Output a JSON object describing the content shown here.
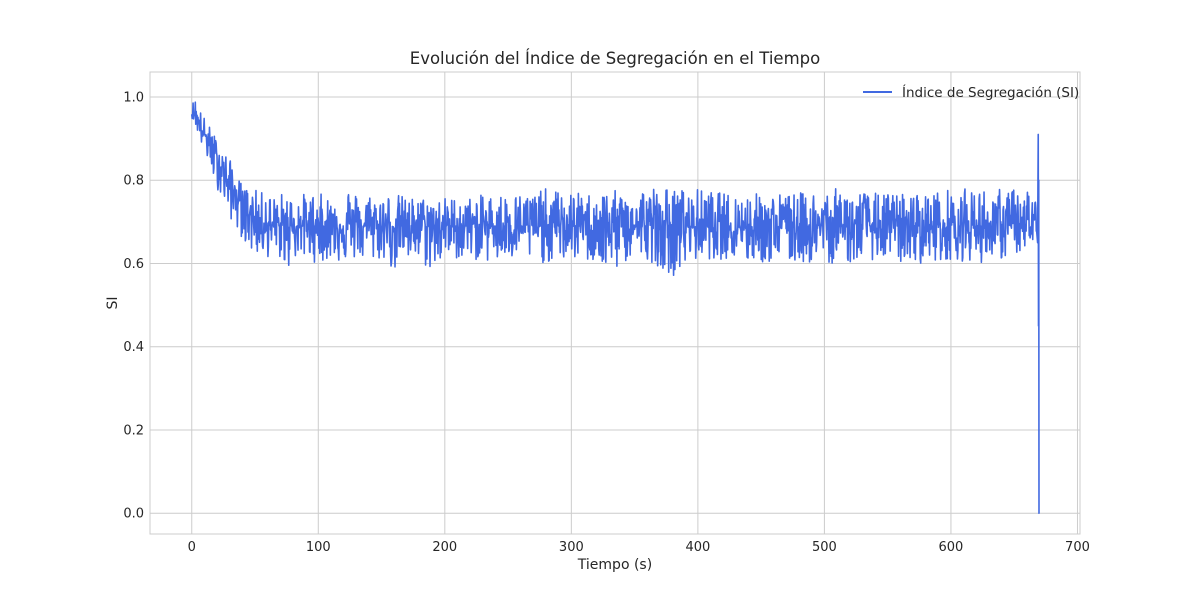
{
  "chart_data": {
    "type": "line",
    "title": "Evolución del Índice de Segregación en el Tiempo",
    "xlabel": "Tiempo (s)",
    "ylabel": "SI",
    "xlim": [
      -33,
      702
    ],
    "ylim": [
      -0.05,
      1.06
    ],
    "x_ticks": [
      0,
      100,
      200,
      300,
      400,
      500,
      600,
      700
    ],
    "y_ticks": [
      0.0,
      0.2,
      0.4,
      0.6,
      0.8,
      1.0
    ],
    "x_tick_labels": [
      "0",
      "100",
      "200",
      "300",
      "400",
      "500",
      "600",
      "700"
    ],
    "y_tick_labels": [
      "0.0",
      "0.2",
      "0.4",
      "0.6",
      "0.8",
      "1.0"
    ],
    "grid": true,
    "legend_position": "top-right",
    "series": [
      {
        "name": "Índice de Segregación (SI)",
        "color": "#4169e1",
        "x": [
          0,
          2,
          4,
          6,
          8,
          10,
          12,
          14,
          16,
          18,
          20,
          22,
          24,
          26,
          28,
          30,
          32,
          34,
          36,
          38,
          40,
          42,
          44,
          46,
          48,
          50,
          52,
          55,
          58,
          62,
          66,
          70,
          75,
          80,
          90,
          100,
          110,
          120,
          130,
          140,
          150,
          160,
          170,
          180,
          190,
          200,
          220,
          240,
          260,
          280,
          300,
          320,
          330,
          340,
          360,
          380,
          400,
          420,
          440,
          460,
          480,
          500,
          520,
          540,
          560,
          580,
          600,
          620,
          640,
          650,
          660,
          664,
          667,
          668.5,
          669,
          669.3,
          669.6,
          670
        ],
        "mean": [
          0.96,
          0.96,
          0.95,
          0.93,
          0.92,
          0.91,
          0.9,
          0.89,
          0.87,
          0.86,
          0.85,
          0.84,
          0.83,
          0.82,
          0.8,
          0.79,
          0.78,
          0.77,
          0.76,
          0.75,
          0.74,
          0.73,
          0.725,
          0.72,
          0.715,
          0.71,
          0.705,
          0.7,
          0.7,
          0.69,
          0.69,
          0.69,
          0.69,
          0.69,
          0.69,
          0.69,
          0.69,
          0.69,
          0.69,
          0.69,
          0.69,
          0.69,
          0.69,
          0.69,
          0.69,
          0.69,
          0.69,
          0.69,
          0.69,
          0.69,
          0.69,
          0.69,
          0.69,
          0.69,
          0.69,
          0.69,
          0.69,
          0.69,
          0.69,
          0.69,
          0.69,
          0.69,
          0.69,
          0.69,
          0.69,
          0.69,
          0.69,
          0.69,
          0.69,
          0.69,
          0.69,
          0.69,
          0.69,
          0.69,
          0.69,
          0.69,
          0.69,
          0.69
        ],
        "upper": [
          0.97,
          1.01,
          0.99,
          0.97,
          0.97,
          0.95,
          0.94,
          0.93,
          0.92,
          0.91,
          0.9,
          0.89,
          0.88,
          0.87,
          0.86,
          0.85,
          0.84,
          0.82,
          0.81,
          0.8,
          0.79,
          0.79,
          0.78,
          0.78,
          0.78,
          0.78,
          0.77,
          0.77,
          0.79,
          0.77,
          0.76,
          0.77,
          0.77,
          0.76,
          0.77,
          0.77,
          0.76,
          0.8,
          0.77,
          0.77,
          0.77,
          0.77,
          0.76,
          0.76,
          0.76,
          0.76,
          0.76,
          0.77,
          0.77,
          0.78,
          0.77,
          0.77,
          0.78,
          0.77,
          0.79,
          0.78,
          0.78,
          0.77,
          0.77,
          0.77,
          0.77,
          0.78,
          0.78,
          0.77,
          0.77,
          0.77,
          0.78,
          0.78,
          0.78,
          0.78,
          0.79,
          0.77,
          0.76,
          0.91,
          0.8,
          0.78,
          0.74,
          0.74
        ],
        "lower": [
          0.95,
          0.94,
          0.92,
          0.9,
          0.88,
          0.86,
          0.85,
          0.83,
          0.81,
          0.8,
          0.78,
          0.77,
          0.75,
          0.74,
          0.72,
          0.71,
          0.7,
          0.69,
          0.68,
          0.67,
          0.66,
          0.65,
          0.64,
          0.63,
          0.62,
          0.62,
          0.62,
          0.61,
          0.62,
          0.61,
          0.6,
          0.61,
          0.58,
          0.61,
          0.61,
          0.6,
          0.61,
          0.6,
          0.61,
          0.6,
          0.61,
          0.58,
          0.6,
          0.6,
          0.58,
          0.61,
          0.61,
          0.6,
          0.61,
          0.6,
          0.61,
          0.6,
          0.56,
          0.6,
          0.61,
          0.57,
          0.61,
          0.61,
          0.6,
          0.6,
          0.6,
          0.6,
          0.6,
          0.61,
          0.6,
          0.6,
          0.61,
          0.6,
          0.61,
          0.62,
          0.63,
          0.64,
          0.6,
          0.45,
          0.0,
          0.0,
          0.0,
          0.0
        ]
      }
    ]
  }
}
